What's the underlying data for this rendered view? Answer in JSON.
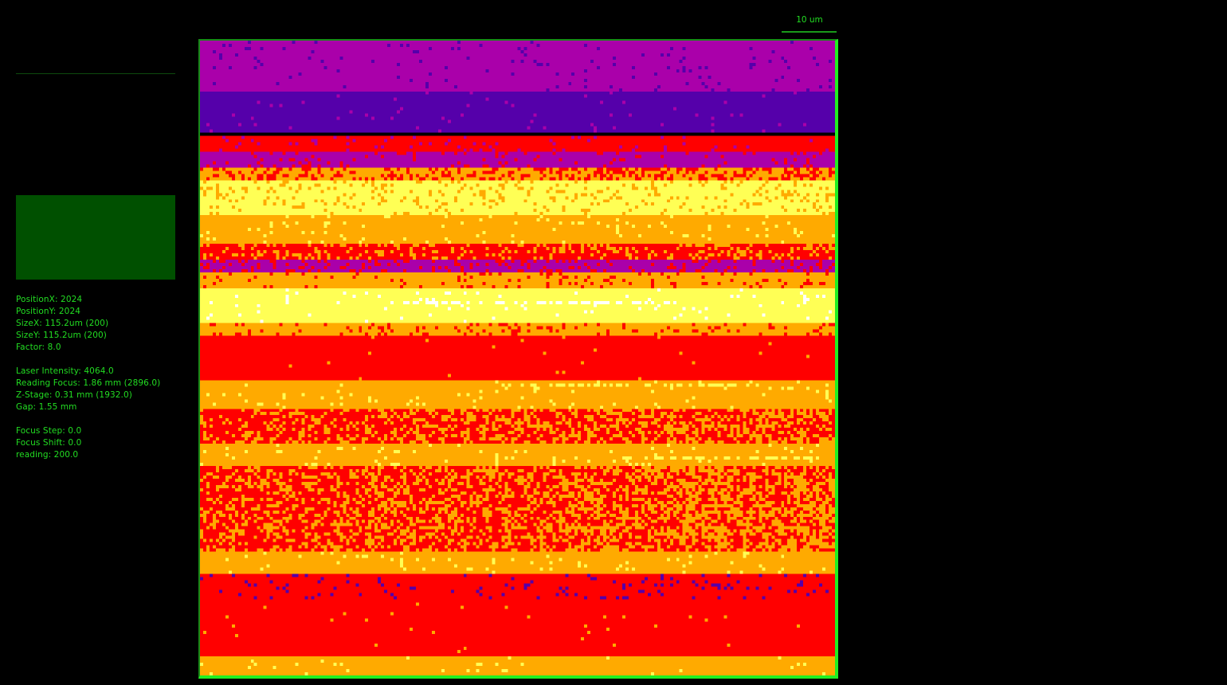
{
  "scale_bar": {
    "label": "10 um"
  },
  "image": {
    "grid_size": 200,
    "colors": {
      "purple": "#aa00aa",
      "indigo": "#5500aa",
      "red": "#ff0000",
      "orange": "#ffaa00",
      "yellow": "#ffff55",
      "white": "#ffffff",
      "black": "#000000"
    }
  },
  "info": {
    "position_x": "PositionX: 2024",
    "position_y": "PositionY: 2024",
    "size_x": "SizeX: 115.2um (200)",
    "size_y": "SizeY: 115.2um (200)",
    "factor": "Factor: 8.0",
    "laser_intensity": "Laser Intensity: 4064.0",
    "reading_focus": "Reading Focus: 1.86 mm (2896.0)",
    "z_stage": "Z-Stage: 0.31 mm (1932.0)",
    "gap": "Gap: 1.55 mm",
    "focus_step": "Focus Step: 0.0",
    "focus_shift": "Focus Shift: 0.0",
    "reading": "reading: 200.0"
  }
}
